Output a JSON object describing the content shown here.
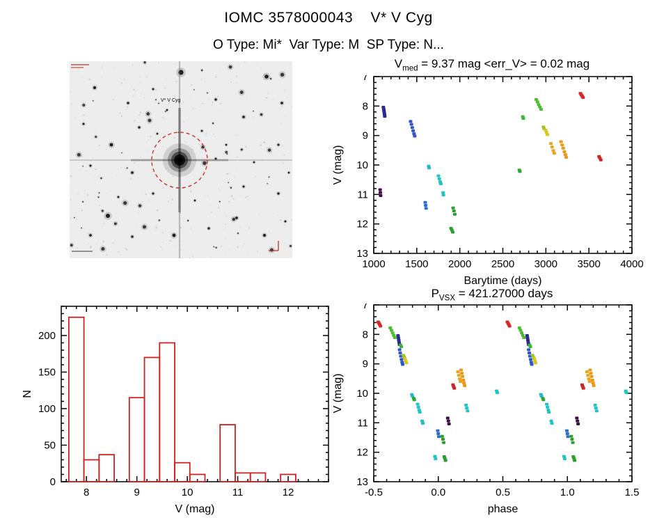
{
  "header": {
    "title": "IOMC 3578000043    V* V Cyg",
    "subtitle": "O Type: Mi*  Var Type: M  SP Type: N..."
  },
  "starfield": {
    "center_label": "V* V Cyg",
    "circle_color": "#cc2222"
  },
  "chart_data": [
    {
      "id": "lightcurve",
      "type": "scatter",
      "title": "V_med = 9.37 mag <err_V> = 0.02 mag",
      "title_parts": {
        "base": "V",
        "sub": "med",
        "rest": " = 9.37 mag <err_V> = 0.02 mag"
      },
      "xlabel": "Barytime (days)",
      "ylabel": "V (mag)",
      "xlim": [
        1000,
        4000
      ],
      "ylim": [
        7,
        13
      ],
      "y_inverted": true,
      "xticks": [
        1000,
        1500,
        2000,
        2500,
        3000,
        3500,
        4000
      ],
      "xtick_labels": [
        "1000",
        "1500",
        "2000",
        "2500",
        "3000",
        "3500",
        "4000"
      ],
      "yticks": [
        7,
        8,
        9,
        10,
        11,
        12,
        13
      ],
      "ytick_labels": [
        "7",
        "8",
        "9",
        "10",
        "11",
        "12",
        "13"
      ],
      "x_minor": 4,
      "y_minor": 4,
      "series": [
        {
          "color": "#2b2b8f",
          "points": [
            [
              1112,
              8.04
            ],
            [
              1116,
              8.1
            ],
            [
              1119,
              8.16
            ],
            [
              1122,
              8.22
            ],
            [
              1125,
              8.28
            ],
            [
              1128,
              8.35
            ]
          ]
        },
        {
          "color": "#420f42",
          "points": [
            [
              1074,
              10.84
            ],
            [
              1077,
              10.94
            ],
            [
              1080,
              11.04
            ]
          ]
        },
        {
          "color": "#2f55c8",
          "points": [
            [
              1428,
              8.52
            ],
            [
              1438,
              8.62
            ],
            [
              1448,
              8.73
            ],
            [
              1458,
              8.84
            ],
            [
              1468,
              8.94
            ],
            [
              1476,
              9.02
            ]
          ]
        },
        {
          "color": "#2b6fd4",
          "points": [
            [
              1598,
              11.27
            ],
            [
              1603,
              11.37
            ],
            [
              1608,
              11.47
            ]
          ]
        },
        {
          "color": "#27b8ce",
          "points": [
            [
              1638,
              10.04
            ],
            [
              1643,
              10.1
            ]
          ]
        },
        {
          "color": "#1fc4c4",
          "points": [
            [
              1752,
              10.37
            ],
            [
              1762,
              10.47
            ],
            [
              1772,
              10.57
            ],
            [
              1780,
              10.64
            ]
          ]
        },
        {
          "color": "#1fc4c4",
          "points": [
            [
              1806,
              10.94
            ],
            [
              1810,
              11.02
            ]
          ]
        },
        {
          "color": "#27a02c",
          "points": [
            [
              1922,
              11.46
            ],
            [
              1932,
              11.56
            ],
            [
              1942,
              11.67
            ]
          ]
        },
        {
          "color": "#2ca02c",
          "points": [
            [
              1898,
              12.15
            ],
            [
              1908,
              12.21
            ],
            [
              1918,
              12.28
            ]
          ]
        },
        {
          "color": "#2ca832",
          "points": [
            [
              2692,
              10.17
            ],
            [
              2698,
              10.22
            ]
          ]
        },
        {
          "color": "#38b838",
          "points": [
            [
              2732,
              8.36
            ],
            [
              2738,
              8.42
            ]
          ]
        },
        {
          "color": "#4cbc30",
          "points": [
            [
              2888,
              7.78
            ],
            [
              2902,
              7.86
            ],
            [
              2916,
              7.95
            ],
            [
              2930,
              8.03
            ],
            [
              2944,
              8.11
            ]
          ]
        },
        {
          "color": "#9ec42a",
          "points": [
            [
              2972,
              8.71
            ],
            [
              2979,
              8.77
            ]
          ]
        },
        {
          "color": "#d8c81e",
          "points": [
            [
              2998,
              8.82
            ],
            [
              3008,
              8.9
            ],
            [
              3018,
              8.97
            ]
          ]
        },
        {
          "color": "#e9a41c",
          "points": [
            [
              3058,
              9.27
            ],
            [
              3072,
              9.39
            ],
            [
              3086,
              9.51
            ],
            [
              3097,
              9.6
            ]
          ]
        },
        {
          "color": "#ef9715",
          "points": [
            [
              3176,
              9.21
            ],
            [
              3189,
              9.32
            ],
            [
              3202,
              9.43
            ],
            [
              3215,
              9.55
            ],
            [
              3227,
              9.65
            ],
            [
              3237,
              9.74
            ]
          ]
        },
        {
          "color": "#d62728",
          "points": [
            [
              3402,
              7.57
            ],
            [
              3412,
              7.62
            ],
            [
              3422,
              7.66
            ],
            [
              3432,
              7.71
            ]
          ]
        },
        {
          "color": "#cf2222",
          "points": [
            [
              3618,
              9.71
            ],
            [
              3628,
              9.77
            ],
            [
              3638,
              9.83
            ]
          ]
        }
      ]
    },
    {
      "id": "histogram",
      "type": "bar",
      "xlabel": "V (mag)",
      "ylabel": "N",
      "xlim": [
        7.5,
        12.8
      ],
      "ylim": [
        240,
        0
      ],
      "xticks": [
        8,
        9,
        10,
        11,
        12
      ],
      "xtick_labels": [
        "8",
        "9",
        "10",
        "11",
        "12"
      ],
      "yticks": [
        0,
        50,
        100,
        150,
        200
      ],
      "ytick_labels": [
        "0",
        "50",
        "100",
        "150",
        "200"
      ],
      "x_minor": 4,
      "y_minor": 4,
      "bar_color": "#cd2121",
      "bin_edges": [
        7.65,
        7.95,
        8.25,
        8.55,
        8.85,
        9.15,
        9.45,
        9.75,
        10.05,
        10.35,
        10.65,
        10.95,
        11.25,
        11.55,
        11.85,
        12.15
      ],
      "counts": [
        225,
        30,
        37,
        0,
        115,
        170,
        190,
        26,
        10,
        0,
        78,
        12,
        12,
        0,
        10
      ]
    },
    {
      "id": "phase",
      "type": "scatter",
      "title": "P_VSX = 421.27000 days",
      "title_parts": {
        "base": "P",
        "sub": "VSX",
        "rest": " = 421.27000 days"
      },
      "xlabel": "phase",
      "ylabel": "V (mag)",
      "xlim": [
        -0.5,
        1.5
      ],
      "ylim": [
        7,
        13
      ],
      "y_inverted": true,
      "duplicate_offset": 1.0,
      "xticks": [
        -0.5,
        0.0,
        0.5,
        1.0,
        1.5
      ],
      "xtick_labels": [
        "-0.5",
        "0.0",
        "0.5",
        "1.0",
        "1.5"
      ],
      "yticks": [
        7,
        8,
        9,
        10,
        11,
        12,
        13
      ],
      "ytick_labels": [
        "7",
        "8",
        "9",
        "10",
        "11",
        "12",
        "13"
      ],
      "x_minor": 4,
      "y_minor": 4,
      "series": [
        {
          "color": "#d62728",
          "points": [
            [
              -0.465,
              7.58
            ],
            [
              -0.459,
              7.63
            ],
            [
              -0.453,
              7.67
            ],
            [
              -0.448,
              7.72
            ]
          ]
        },
        {
          "color": "#4cbc30",
          "points": [
            [
              -0.372,
              7.78
            ],
            [
              -0.363,
              7.86
            ],
            [
              -0.354,
              7.95
            ],
            [
              -0.345,
              8.03
            ],
            [
              -0.337,
              8.11
            ]
          ]
        },
        {
          "color": "#2b2b8f",
          "points": [
            [
              -0.312,
              8.04
            ],
            [
              -0.309,
              8.12
            ],
            [
              -0.306,
              8.2
            ],
            [
              -0.303,
              8.28
            ],
            [
              -0.3,
              8.35
            ]
          ]
        },
        {
          "color": "#38b838",
          "points": [
            [
              -0.292,
              8.36
            ],
            [
              -0.287,
              8.42
            ]
          ]
        },
        {
          "color": "#2f55c8",
          "points": [
            [
              -0.3,
              8.52
            ],
            [
              -0.295,
              8.63
            ],
            [
              -0.29,
              8.74
            ],
            [
              -0.285,
              8.85
            ],
            [
              -0.28,
              8.95
            ],
            [
              -0.276,
              9.02
            ]
          ]
        },
        {
          "color": "#9ec42a",
          "points": [
            [
              -0.27,
              8.71
            ],
            [
              -0.264,
              8.77
            ]
          ]
        },
        {
          "color": "#d8c81e",
          "points": [
            [
              -0.258,
              8.82
            ],
            [
              -0.252,
              8.9
            ],
            [
              -0.247,
              8.97
            ]
          ]
        },
        {
          "color": "#e9a41c",
          "points": [
            [
              0.152,
              9.27
            ],
            [
              0.159,
              9.39
            ],
            [
              0.166,
              9.51
            ],
            [
              0.172,
              9.6
            ]
          ]
        },
        {
          "color": "#ef9715",
          "points": [
            [
              0.176,
              9.21
            ],
            [
              0.182,
              9.32
            ],
            [
              0.188,
              9.43
            ],
            [
              0.194,
              9.55
            ],
            [
              0.199,
              9.65
            ],
            [
              0.204,
              9.74
            ]
          ]
        },
        {
          "color": "#cf2222",
          "points": [
            [
              0.114,
              9.71
            ],
            [
              0.119,
              9.77
            ],
            [
              0.124,
              9.83
            ]
          ]
        },
        {
          "color": "#27b8ce",
          "points": [
            [
              -0.205,
              10.04
            ],
            [
              -0.2,
              10.1
            ]
          ]
        },
        {
          "color": "#2ca832",
          "points": [
            [
              -0.19,
              10.17
            ],
            [
              -0.186,
              10.22
            ]
          ]
        },
        {
          "color": "#1fc4c4",
          "points": [
            [
              -0.16,
              10.37
            ],
            [
              -0.154,
              10.47
            ],
            [
              -0.148,
              10.57
            ],
            [
              -0.143,
              10.64
            ]
          ]
        },
        {
          "color": "#1fc4c4",
          "points": [
            [
              0.215,
              10.4
            ],
            [
              0.221,
              10.5
            ],
            [
              0.227,
              10.6
            ]
          ]
        },
        {
          "color": "#1fc4c4",
          "points": [
            [
              -0.125,
              10.94
            ],
            [
              -0.12,
              11.02
            ]
          ]
        },
        {
          "color": "#420f42",
          "points": [
            [
              0.073,
              10.84
            ],
            [
              0.078,
              10.94
            ],
            [
              0.083,
              11.04
            ]
          ]
        },
        {
          "color": "#2b6fd4",
          "points": [
            [
              -0.004,
              11.27
            ],
            [
              0.0,
              11.37
            ],
            [
              0.004,
              11.47
            ]
          ]
        },
        {
          "color": "#27a02c",
          "points": [
            [
              0.03,
              11.46
            ],
            [
              0.036,
              11.56
            ],
            [
              0.042,
              11.67
            ]
          ]
        },
        {
          "color": "#2ca02c",
          "points": [
            [
              0.046,
              12.15
            ],
            [
              0.051,
              12.21
            ],
            [
              0.056,
              12.28
            ]
          ]
        },
        {
          "color": "#1fc4c4",
          "points": [
            [
              -0.026,
              12.14
            ],
            [
              -0.021,
              12.22
            ]
          ]
        },
        {
          "color": "#1fc4c4",
          "points": [
            [
              0.452,
              9.92
            ],
            [
              0.457,
              9.98
            ]
          ]
        }
      ]
    }
  ]
}
